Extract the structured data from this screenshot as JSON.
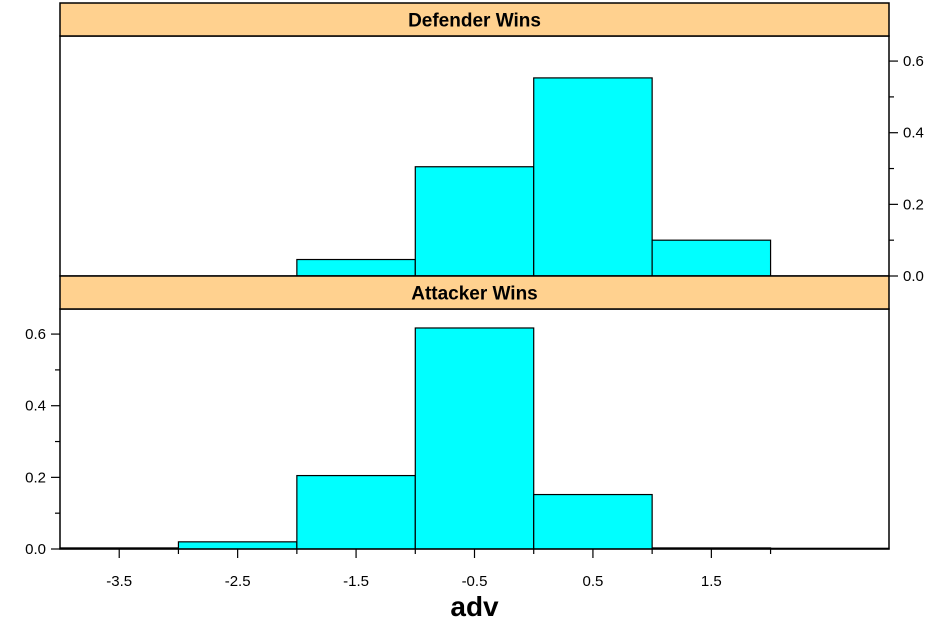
{
  "chart_data": {
    "type": "bar",
    "xlabel": "adv",
    "x_tick_labels": [
      "-3.5",
      "-2.5",
      "-1.5",
      "-0.5",
      "0.5",
      "1.5"
    ],
    "x_ticks": [
      -3.5,
      -2.5,
      -1.5,
      -0.5,
      0.5,
      1.5
    ],
    "xlim": [
      -4,
      3
    ],
    "ylim": [
      0,
      0.67
    ],
    "y_tick_labels": [
      "0.0",
      "0.2",
      "0.4",
      "0.6"
    ],
    "y_ticks": [
      0,
      0.2,
      0.4,
      0.6
    ],
    "bar_color": "#00ffff",
    "strip_color": "#ffd18f",
    "panels": [
      {
        "title": "Defender Wins",
        "y_axis_side": "right",
        "bins": [
          {
            "from": -4,
            "to": -3,
            "value": 0.0
          },
          {
            "from": -3,
            "to": -2,
            "value": 0.0
          },
          {
            "from": -2,
            "to": -1,
            "value": 0.046
          },
          {
            "from": -1,
            "to": 0,
            "value": 0.305
          },
          {
            "from": 0,
            "to": 1,
            "value": 0.553
          },
          {
            "from": 1,
            "to": 2,
            "value": 0.1
          },
          {
            "from": 2,
            "to": 3,
            "value": 0.0
          }
        ]
      },
      {
        "title": "Attacker Wins",
        "y_axis_side": "left",
        "bins": [
          {
            "from": -4,
            "to": -3,
            "value": 0.003
          },
          {
            "from": -3,
            "to": -2,
            "value": 0.02
          },
          {
            "from": -2,
            "to": -1,
            "value": 0.205
          },
          {
            "from": -1,
            "to": 0,
            "value": 0.617
          },
          {
            "from": 0,
            "to": 1,
            "value": 0.152
          },
          {
            "from": 1,
            "to": 2,
            "value": 0.003
          },
          {
            "from": 2,
            "to": 3,
            "value": 0.002
          }
        ]
      }
    ]
  }
}
